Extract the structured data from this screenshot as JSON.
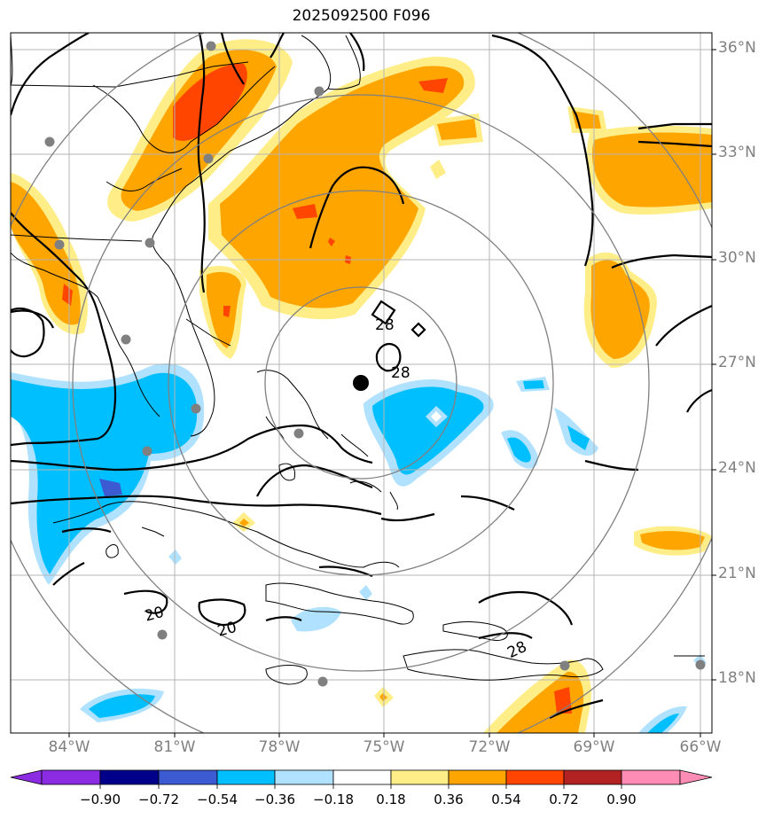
{
  "title": "2025092500 F096",
  "map": {
    "lat_ticks": [
      "36°N",
      "33°N",
      "30°N",
      "27°N",
      "24°N",
      "21°N",
      "18°N"
    ],
    "lon_ticks": [
      "84°W",
      "81°W",
      "78°W",
      "75°W",
      "72°W",
      "69°W",
      "66°W"
    ],
    "contour_labels": [
      "28",
      "28",
      "20",
      "20",
      "28"
    ],
    "range_ring_count": 4,
    "center_marker": "storm-center"
  },
  "colorbar": {
    "ticks": [
      "−0.90",
      "−0.72",
      "−0.54",
      "−0.36",
      "−0.18",
      "0.18",
      "0.36",
      "0.54",
      "0.72",
      "0.90"
    ],
    "colors": [
      "#8b2be2",
      "#00008b",
      "#3c5ad2",
      "#00bfff",
      "#b0e2ff",
      "#ffffff",
      "#ffee88",
      "#ffa500",
      "#ff4500",
      "#b22222",
      "#ff8cb4"
    ]
  }
}
